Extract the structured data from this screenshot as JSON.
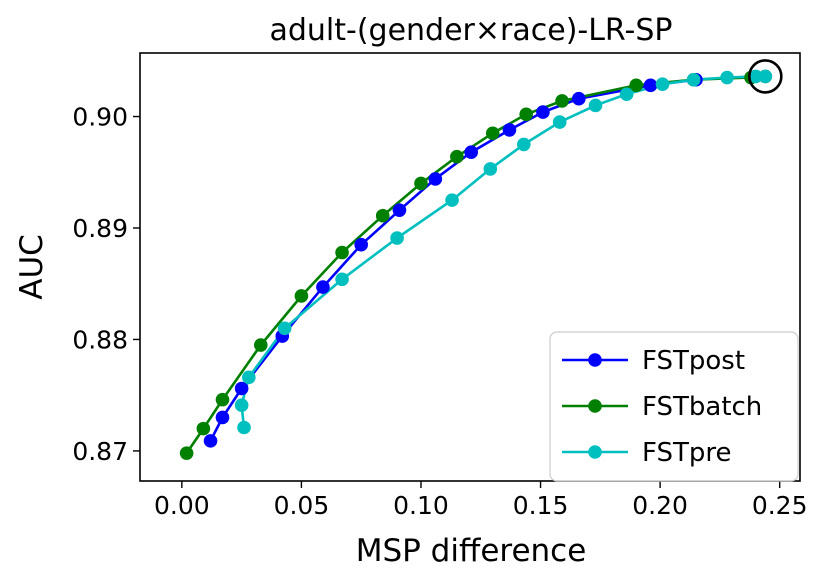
{
  "chart_data": {
    "type": "line",
    "title": "adult-(gender×race)-LR-SP",
    "xlabel": "MSP difference",
    "ylabel": "AUC",
    "xlim": [
      -0.0175,
      0.2585
    ],
    "ylim": [
      0.8673,
      0.9057
    ],
    "xticks": [
      0.0,
      0.05,
      0.1,
      0.15,
      0.2,
      0.25
    ],
    "xtick_labels": [
      "0.00",
      "0.05",
      "0.10",
      "0.15",
      "0.20",
      "0.25"
    ],
    "yticks": [
      0.87,
      0.88,
      0.89,
      0.9
    ],
    "ytick_labels": [
      "0.87",
      "0.88",
      "0.89",
      "0.90"
    ],
    "legend_position": "lower-right",
    "series": [
      {
        "name": "FSTpost",
        "color": "#0000ff",
        "x": [
          0.012,
          0.017,
          0.025,
          0.042,
          0.059,
          0.075,
          0.091,
          0.106,
          0.121,
          0.137,
          0.151,
          0.166,
          0.196,
          0.215
        ],
        "y": [
          0.8709,
          0.873,
          0.8756,
          0.8803,
          0.8847,
          0.8885,
          0.8916,
          0.8944,
          0.8968,
          0.8988,
          0.9004,
          0.9016,
          0.9028,
          0.9033
        ]
      },
      {
        "name": "FSTbatch",
        "color": "#008000",
        "x": [
          0.002,
          0.009,
          0.017,
          0.033,
          0.05,
          0.067,
          0.084,
          0.1,
          0.115,
          0.13,
          0.144,
          0.159,
          0.19,
          0.214,
          0.238,
          0.244
        ],
        "y": [
          0.8698,
          0.872,
          0.8746,
          0.8795,
          0.8839,
          0.8878,
          0.8911,
          0.894,
          0.8964,
          0.8985,
          0.9002,
          0.9014,
          0.9028,
          0.9033,
          0.9035,
          0.9036
        ]
      },
      {
        "name": "FSTpre",
        "color": "#00bfbf",
        "x": [
          0.026,
          0.025,
          0.028,
          0.043,
          0.067,
          0.09,
          0.113,
          0.129,
          0.143,
          0.158,
          0.173,
          0.186,
          0.201,
          0.214,
          0.228,
          0.24,
          0.244
        ],
        "y": [
          0.8721,
          0.8741,
          0.8766,
          0.881,
          0.8854,
          0.8891,
          0.8925,
          0.8953,
          0.8975,
          0.8995,
          0.901,
          0.902,
          0.9029,
          0.9033,
          0.9035,
          0.9036,
          0.9036
        ]
      }
    ],
    "annotations": [
      {
        "type": "circle-marker",
        "x": 0.244,
        "y": 0.9036
      }
    ]
  }
}
